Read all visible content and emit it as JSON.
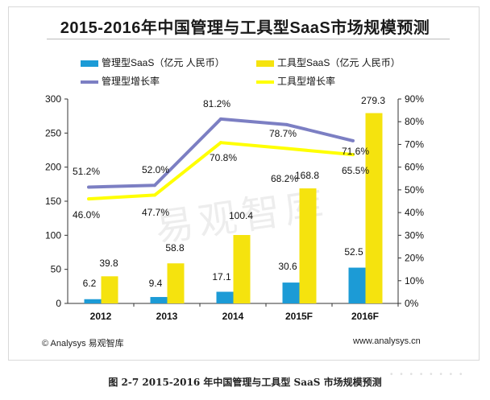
{
  "colors": {
    "mgmt_bar": "#1c9bd6",
    "tool_bar": "#f5e30e",
    "mgmt_line": "#7c7fc3",
    "tool_line": "#ffff00"
  },
  "chart_data": {
    "type": "bar",
    "title": "2015-2016年中国管理与工具型SaaS市场规模预测",
    "categories": [
      "2012",
      "2013",
      "2014",
      "2015F",
      "2016F"
    ],
    "ylim": [
      0,
      300
    ],
    "yticks": [
      "0",
      "50",
      "100",
      "150",
      "200",
      "250",
      "300"
    ],
    "y2lim": [
      0,
      90
    ],
    "y2ticks": [
      "0%",
      "10%",
      "20%",
      "30%",
      "40%",
      "50%",
      "60%",
      "70%",
      "80%",
      "90%"
    ],
    "series": [
      {
        "name": "管理型SaaS（亿元 人民币）",
        "kind": "bar",
        "values": [
          6.2,
          9.4,
          17.1,
          30.6,
          52.5
        ],
        "labels": [
          "6.2",
          "9.4",
          "17.1",
          "30.6",
          "52.5"
        ]
      },
      {
        "name": "工具型SaaS（亿元 人民币）",
        "kind": "bar",
        "values": [
          39.8,
          58.8,
          100.4,
          168.8,
          279.3
        ],
        "labels": [
          "39.8",
          "58.8",
          "100.4",
          "168.8",
          "279.3"
        ]
      },
      {
        "name": "管理型增长率",
        "kind": "line",
        "axis": "right",
        "values": [
          51.2,
          52.0,
          81.2,
          78.7,
          71.6
        ],
        "labels": [
          "51.2%",
          "52.0%",
          "81.2%",
          "78.7%",
          "71.6%"
        ]
      },
      {
        "name": "工具型增长率",
        "kind": "line",
        "axis": "right",
        "values": [
          46.0,
          47.7,
          70.8,
          68.2,
          65.5
        ],
        "labels": [
          "46.0%",
          "47.7%",
          "70.8%",
          "68.2%",
          "65.5%"
        ]
      }
    ]
  },
  "watermark": "易观智库",
  "footer": {
    "left": "© Analysys 易观智库",
    "right": "www.analysys.cn"
  },
  "caption": "图 2-7 2015-2016 年中国管理与工具型 SaaS 市场规模预测"
}
